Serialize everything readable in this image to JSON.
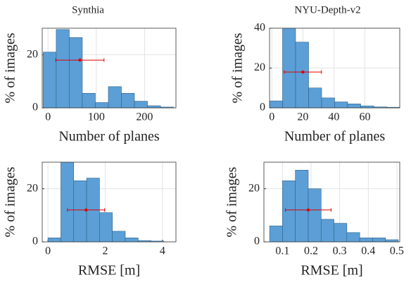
{
  "chart_data": [
    {
      "type": "histogram",
      "title": "Synthia",
      "xlabel": "Number of planes",
      "ylabel": "% of images",
      "bins": [
        -10,
        17,
        44,
        71,
        98,
        125,
        152,
        179,
        206,
        233,
        260
      ],
      "values": [
        21,
        29.5,
        26.5,
        5.5,
        2,
        8,
        5.5,
        2.5,
        0.8,
        0.3
      ],
      "color": "#5b9fd6",
      "edgecolor": "#2f5f86",
      "xlim": [
        -12,
        265
      ],
      "xticks": [
        0,
        100,
        200
      ],
      "ylim": [
        0,
        30
      ],
      "yticks": [
        0,
        20
      ],
      "grid": true,
      "errorbar": {
        "x": 66,
        "y": 18,
        "xerr": 50,
        "color": "#e00000"
      }
    },
    {
      "type": "histogram",
      "title": "NYU-Depth-v2",
      "xlabel": "Number of planes",
      "ylabel": "% of images",
      "bins": [
        -1.5,
        6.9,
        15.3,
        23.7,
        32.1,
        40.5,
        48.9,
        57.3,
        65.7,
        74.1,
        82.5
      ],
      "values": [
        3.5,
        44,
        33,
        10,
        5,
        3,
        2,
        1,
        0.5,
        0.3
      ],
      "color": "#5b9fd6",
      "edgecolor": "#2f5f86",
      "xlim": [
        -1.5,
        82.5
      ],
      "xticks": [
        0,
        20,
        40,
        60
      ],
      "ylim": [
        0,
        40
      ],
      "yticks": [
        0,
        20,
        40
      ],
      "grid": true,
      "errorbar": {
        "x": 20,
        "y": 18,
        "xerr": 12,
        "color": "#e00000"
      }
    },
    {
      "type": "histogram",
      "xlabel": "RMSE [m]",
      "ylabel": "% of images",
      "bins": [
        0,
        0.45,
        0.9,
        1.35,
        1.8,
        2.25,
        2.7,
        3.15,
        3.6,
        4.05
      ],
      "values": [
        1.5,
        31,
        23,
        24,
        11,
        4,
        1.5,
        0.5,
        0.3
      ],
      "color": "#5b9fd6",
      "edgecolor": "#2f5f86",
      "xlim": [
        -0.2,
        4.47
      ],
      "xticks": [
        0,
        2,
        4
      ],
      "ylim": [
        0,
        30
      ],
      "yticks": [
        0,
        20
      ],
      "grid": true,
      "errorbar": {
        "x": 1.33,
        "y": 12,
        "xerr": 0.65,
        "color": "#e00000"
      }
    },
    {
      "type": "histogram",
      "xlabel": "RMSE [m]",
      "ylabel": "% of images",
      "bins": [
        0.055,
        0.1,
        0.145,
        0.19,
        0.235,
        0.28,
        0.325,
        0.37,
        0.415,
        0.46,
        0.505
      ],
      "values": [
        6,
        23,
        27,
        20,
        8.5,
        7,
        3.5,
        1.5,
        1.5,
        0.8
      ],
      "color": "#5b9fd6",
      "edgecolor": "#2f5f86",
      "xlim": [
        0.035,
        0.51
      ],
      "xticks": [
        0.1,
        0.2,
        0.3,
        0.4,
        0.5
      ],
      "ylim": [
        0,
        30
      ],
      "yticks": [
        0,
        20
      ],
      "grid": true,
      "errorbar": {
        "x": 0.19,
        "y": 12,
        "xerr": 0.08,
        "color": "#e00000"
      }
    }
  ]
}
